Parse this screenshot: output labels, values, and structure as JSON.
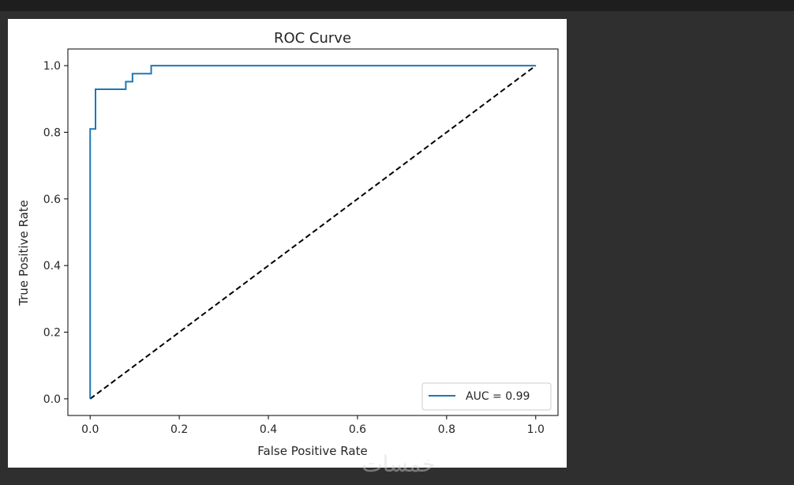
{
  "chart_data": {
    "type": "line",
    "title": "ROC Curve",
    "xlabel": "False Positive Rate",
    "ylabel": "True Positive Rate",
    "xlim": [
      -0.05,
      1.05
    ],
    "ylim": [
      -0.05,
      1.05
    ],
    "x_ticks": [
      "0.0",
      "0.2",
      "0.4",
      "0.6",
      "0.8",
      "1.0"
    ],
    "y_ticks": [
      "0.0",
      "0.2",
      "0.4",
      "0.6",
      "0.8",
      "1.0"
    ],
    "x_tick_values": [
      0.0,
      0.2,
      0.4,
      0.6,
      0.8,
      1.0
    ],
    "y_tick_values": [
      0.0,
      0.2,
      0.4,
      0.6,
      0.8,
      1.0
    ],
    "series": [
      {
        "name": "AUC = 0.99",
        "color": "#1f77b4",
        "x": [
          0.0,
          0.0,
          0.012,
          0.012,
          0.08,
          0.08,
          0.095,
          0.095,
          0.137,
          0.137,
          1.0
        ],
        "y": [
          0.0,
          0.81,
          0.81,
          0.929,
          0.929,
          0.952,
          0.952,
          0.976,
          0.976,
          1.0,
          1.0
        ]
      }
    ],
    "reference_line": {
      "x": [
        0.0,
        1.0
      ],
      "y": [
        0.0,
        1.0
      ],
      "color": "#000000",
      "style": "dashed"
    },
    "legend": {
      "location": "lower-right",
      "entries": [
        "AUC = 0.99"
      ]
    }
  },
  "watermark": {
    "text": "خمسات"
  }
}
